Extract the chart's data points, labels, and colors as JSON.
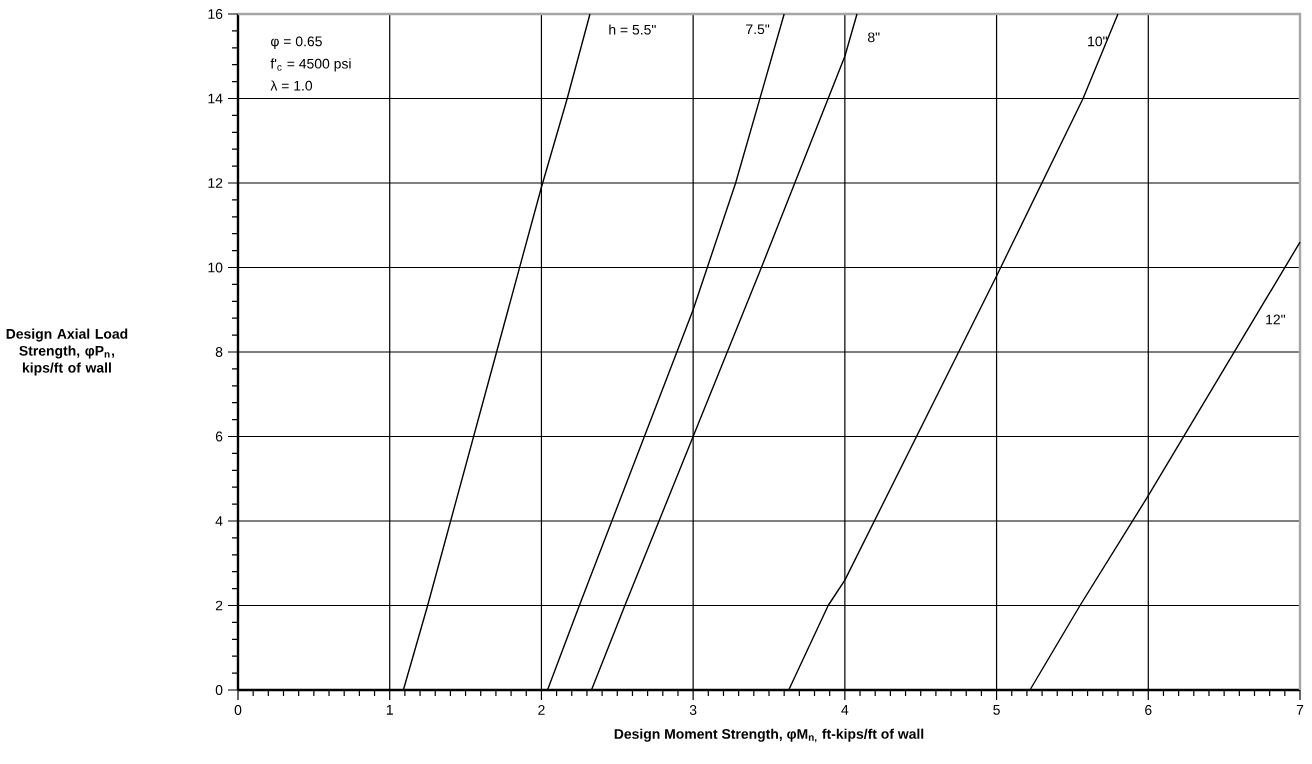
{
  "chart_data": {
    "type": "line",
    "xlabel": "**Design Moment Strength, φM$_{n,}$ ft-kips/ft of wall**",
    "ylabel": "**Design Axial Load Strength, φP$_{n}$, kips/ft of wall**",
    "annotations": [
      "φ = 0.65",
      "f'$_{c}$ = 4500 psi",
      "λ = 1.0"
    ],
    "series": [
      {
        "name": "h = 5.5\"",
        "color": "#000000",
        "x": [
          1.09,
          1.25,
          2.0,
          2.17,
          2.32
        ],
        "values": [
          0,
          2,
          11.9,
          14,
          16
        ]
      },
      {
        "name": "7.5\"",
        "color": "#000000",
        "x": [
          2.04,
          2.25,
          3.0,
          3.28,
          3.6
        ],
        "values": [
          0,
          2,
          9,
          12,
          16
        ]
      },
      {
        "name": "8\"",
        "color": "#000000",
        "x": [
          2.33,
          2.55,
          3.0,
          3.45,
          4.0,
          4.08
        ],
        "values": [
          0,
          2,
          6,
          10,
          15,
          16
        ]
      },
      {
        "name": "10\"",
        "color": "#000000",
        "x": [
          3.63,
          3.89,
          4.0,
          5.0,
          5.57,
          5.8
        ],
        "values": [
          0,
          2,
          2.6,
          9.8,
          14,
          16
        ]
      },
      {
        "name": "12\"",
        "color": "#000000",
        "x": [
          5.22,
          5.55,
          6.0,
          7.0
        ],
        "values": [
          0,
          2,
          4.6,
          10.6
        ]
      }
    ],
    "xlim": [
      0,
      7
    ],
    "xticks": [
      0,
      1,
      2,
      3,
      4,
      5,
      6,
      7
    ],
    "ylim": [
      0,
      16
    ],
    "yticks": [
      0,
      2,
      4,
      6,
      8,
      10,
      12,
      14,
      16
    ],
    "grid": true,
    "legend": false,
    "marker": "none",
    "line_style": "solid"
  }
}
